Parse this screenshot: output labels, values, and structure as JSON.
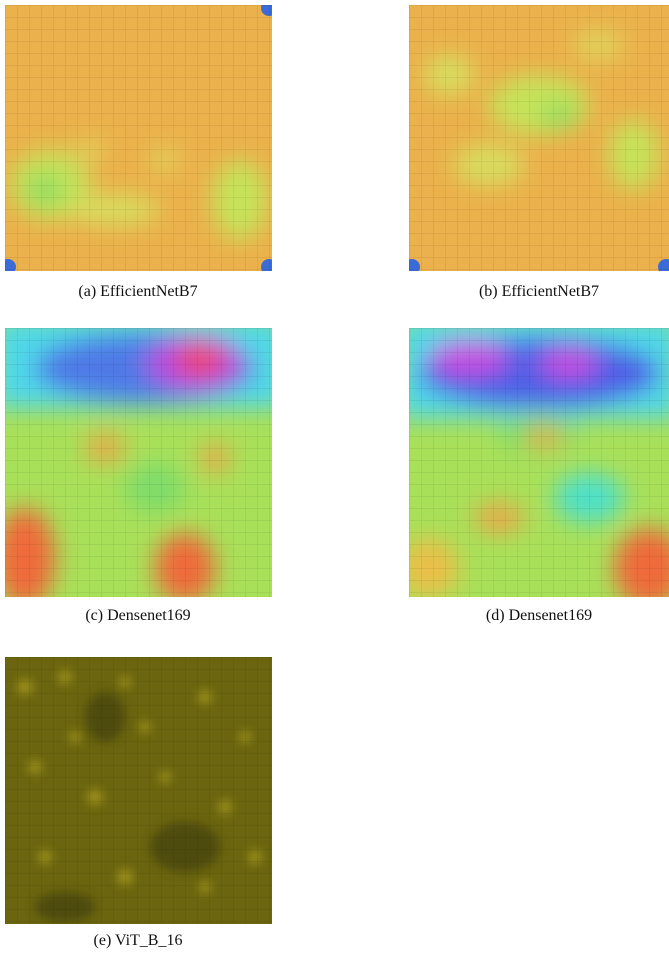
{
  "panels": [
    {
      "caption": "(a) EfficientNetB7"
    },
    {
      "caption": "(b) EfficientNetB7"
    },
    {
      "caption": "(c) Densenet169"
    },
    {
      "caption": "(d) Densenet169"
    },
    {
      "caption": "(e) ViT_B_16"
    }
  ]
}
